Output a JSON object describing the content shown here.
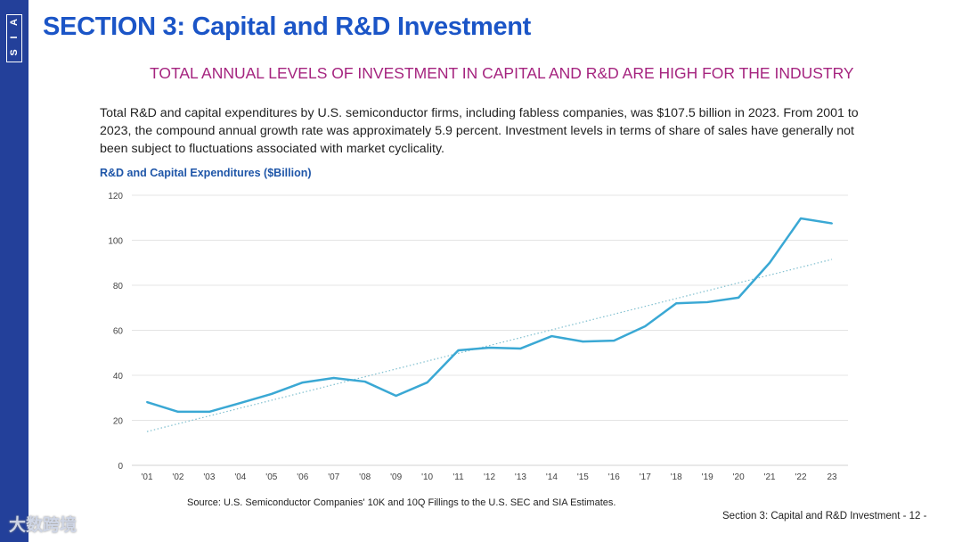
{
  "sidebar": {
    "logo_letters": [
      "A",
      "I",
      "S"
    ]
  },
  "header": {
    "title": "SECTION 3: Capital and R&D Investment",
    "subtitle": "TOTAL ANNUAL LEVELS OF INVESTMENT IN CAPITAL AND R&D ARE HIGH FOR THE INDUSTRY"
  },
  "body": {
    "paragraph": "Total R&D and capital expenditures by U.S. semiconductor firms, including fabless companies, was $107.5 billion in 2023. From 2001 to 2023, the compound annual growth rate was approximately 5.9 percent. Investment levels in terms of share of sales have generally not been subject to fluctuations associated with market cyclicality."
  },
  "chart_data": {
    "type": "line",
    "title": "R&D and Capital Expenditures ($Billion)",
    "xlabel": "",
    "ylabel": "",
    "ylim": [
      0,
      120
    ],
    "yticks": [
      0,
      20,
      40,
      60,
      80,
      100,
      120
    ],
    "categories": [
      "'01",
      "'02",
      "'03",
      "'04",
      "'05",
      "'06",
      "'07",
      "'08",
      "'09",
      "'10",
      "'11",
      "'12",
      "'13",
      "'14",
      "'15",
      "'16",
      "'17",
      "'18",
      "'19",
      "'20",
      "'21",
      "'22",
      "23"
    ],
    "series": [
      {
        "name": "R&D and Capital Expenditures",
        "color": "#3aa8d4",
        "values": [
          28.1,
          23.8,
          23.8,
          27.7,
          31.7,
          36.8,
          38.8,
          37.2,
          30.9,
          36.8,
          51.1,
          52.3,
          51.9,
          57.4,
          55.0,
          55.4,
          61.8,
          72.0,
          72.5,
          74.5,
          90.0,
          109.7,
          107.5
        ]
      },
      {
        "name": "Trend",
        "style": "dotted",
        "color": "#7fbfcf",
        "values_endpoints": [
          15.0,
          91.5
        ]
      }
    ],
    "grid": true
  },
  "source": "Source: U.S. Semiconductor Companies' 10K and 10Q Fillings to the U.S. SEC and SIA Estimates.",
  "footer": "Section 3: Capital and R&D Investment  - 12 -",
  "watermark": "大数跨境"
}
